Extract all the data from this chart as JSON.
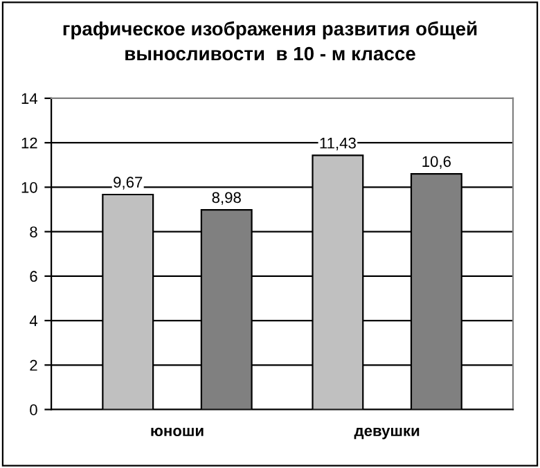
{
  "chart_data": {
    "type": "bar",
    "title": "графическое изображения развития общей\nвыносливости  в 10 - м классе",
    "categories": [
      "юноши",
      "девушки"
    ],
    "series": [
      {
        "color": "#c0c0c0",
        "values": [
          9.67,
          11.43
        ],
        "value_labels": [
          "9,67",
          "11,43"
        ]
      },
      {
        "color": "#808080",
        "values": [
          8.98,
          10.6
        ],
        "value_labels": [
          "8,98",
          "10,6"
        ]
      }
    ],
    "ylim": [
      0,
      14
    ],
    "yticks": [
      0,
      2,
      4,
      6,
      8,
      10,
      12,
      14
    ],
    "grid": "y",
    "legend": false
  }
}
